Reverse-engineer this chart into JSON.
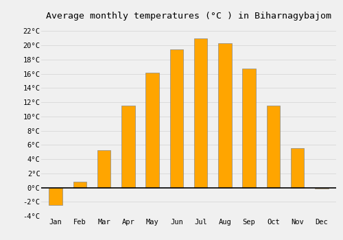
{
  "title": "Average monthly temperatures (°C ) in Biharnagybajom",
  "months": [
    "Jan",
    "Feb",
    "Mar",
    "Apr",
    "May",
    "Jun",
    "Jul",
    "Aug",
    "Sep",
    "Oct",
    "Nov",
    "Dec"
  ],
  "values": [
    -2.5,
    0.8,
    5.3,
    11.5,
    16.2,
    19.4,
    21.0,
    20.3,
    16.7,
    11.5,
    5.5,
    -0.1
  ],
  "bar_color": "#FFA500",
  "bar_edge_color": "#888888",
  "background_color": "#f0f0f0",
  "grid_color": "#d8d8d8",
  "ylim": [
    -4,
    23
  ],
  "yticks": [
    -4,
    -2,
    0,
    2,
    4,
    6,
    8,
    10,
    12,
    14,
    16,
    18,
    20,
    22
  ],
  "title_fontsize": 9.5,
  "tick_fontsize": 7.5,
  "font_family": "monospace",
  "bar_width": 0.55
}
